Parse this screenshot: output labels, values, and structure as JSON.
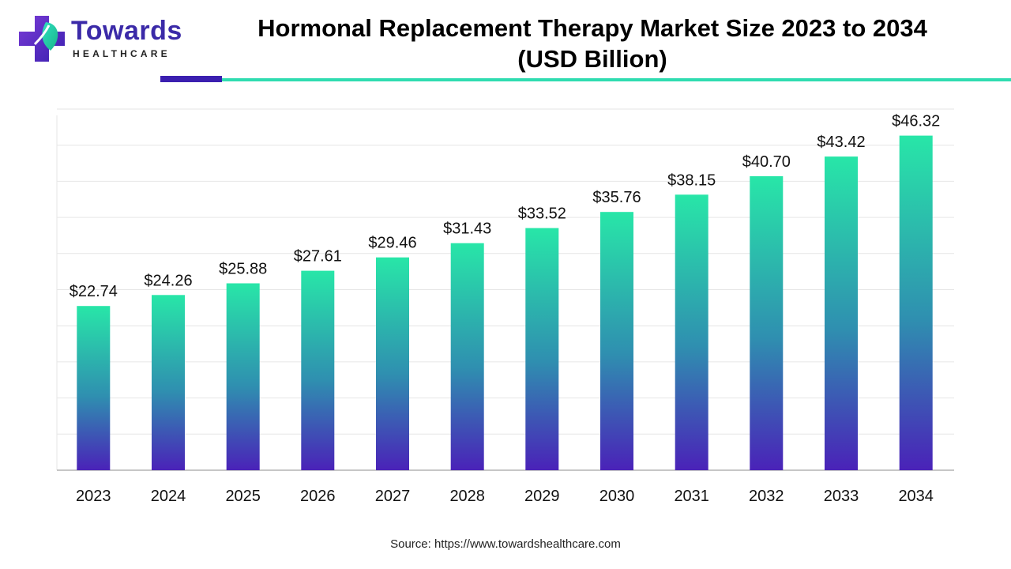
{
  "brand": {
    "word": "Towards",
    "sub": "HEALTHCARE"
  },
  "chart_data": {
    "type": "bar",
    "title_line1": "Hormonal Replacement Therapy Market Size 2023 to 2034",
    "title_line2": "(USD Billion)",
    "xlabel": "",
    "ylabel": "",
    "categories": [
      "2023",
      "2024",
      "2025",
      "2026",
      "2027",
      "2028",
      "2029",
      "2030",
      "2031",
      "2032",
      "2033",
      "2034"
    ],
    "values": [
      22.74,
      24.26,
      25.88,
      27.61,
      29.46,
      31.43,
      33.52,
      35.76,
      38.15,
      40.7,
      43.42,
      46.32
    ],
    "labels": [
      "$22.74",
      "$24.26",
      "$25.88",
      "$27.61",
      "$29.46",
      "$31.43",
      "$33.52",
      "$35.76",
      "$38.15",
      "$40.70",
      "$43.42",
      "$46.32"
    ],
    "ylim": [
      0,
      50
    ],
    "grid": true,
    "colors": {
      "bar_top": "#28e6a8",
      "bar_mid": "#2f8fb0",
      "bar_bottom": "#4a22b8",
      "grid": "#e6e6e6",
      "axis": "#b3b3b3"
    }
  },
  "source": "Source: https://www.towardshealthcare.com"
}
